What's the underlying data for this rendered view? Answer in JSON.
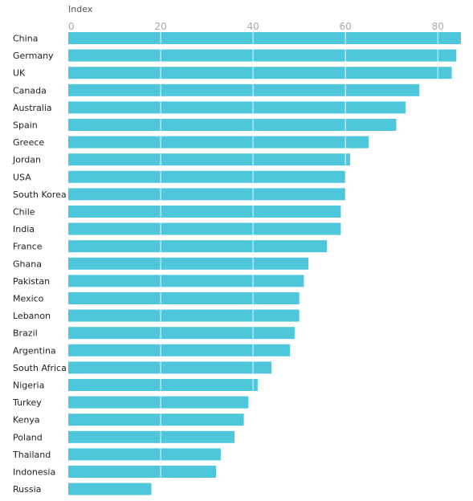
{
  "chart_data": {
    "type": "bar",
    "orientation": "horizontal",
    "xlabel": "Index",
    "xlim": [
      0,
      85
    ],
    "xticks": [
      0,
      20,
      40,
      60,
      80
    ],
    "grid": true,
    "bar_color": "#4ec7dc",
    "categories": [
      "China",
      "Germany",
      "UK",
      "Canada",
      "Australia",
      "Spain",
      "Greece",
      "Jordan",
      "USA",
      "South Korea",
      "Chile",
      "India",
      "France",
      "Ghana",
      "Pakistan",
      "Mexico",
      "Lebanon",
      "Brazil",
      "Argentina",
      "South Africa",
      "Nigeria",
      "Turkey",
      "Kenya",
      "Poland",
      "Thailand",
      "Indonesia",
      "Russia"
    ],
    "values": [
      85,
      84,
      83,
      76,
      73,
      71,
      65,
      61,
      60,
      60,
      59,
      59,
      56,
      52,
      51,
      50,
      50,
      49,
      48,
      44,
      41,
      39,
      38,
      36,
      33,
      32,
      18
    ]
  }
}
